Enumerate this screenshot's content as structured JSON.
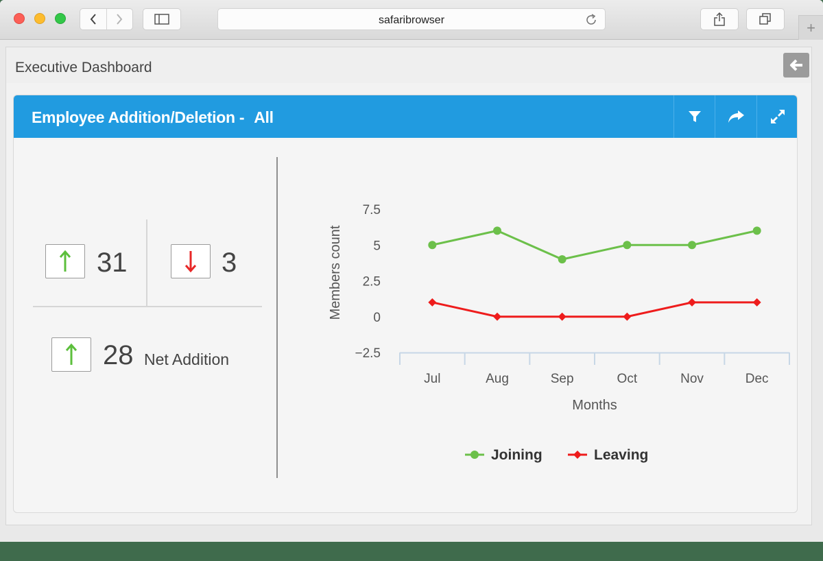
{
  "browser": {
    "url": "safaribrowser"
  },
  "page": {
    "title": "Executive Dashboard"
  },
  "widget": {
    "title": "Employee Addition/Deletion -",
    "filter_value": "All"
  },
  "stats": {
    "joined": "31",
    "left": "3",
    "net": "28",
    "net_label": "Net Addition"
  },
  "colors": {
    "header_blue": "#219be0",
    "joining": "#6cc04a",
    "leaving": "#ee1c1c"
  },
  "icons": [
    "back-icon",
    "sidebar-icon",
    "reload-icon",
    "share-icon",
    "tabs-icon",
    "filter-icon",
    "forward-icon",
    "expand-icon",
    "arrow-up-icon",
    "arrow-down-icon"
  ],
  "chart_data": {
    "type": "line",
    "categories": [
      "Jul",
      "Aug",
      "Sep",
      "Oct",
      "Nov",
      "Dec"
    ],
    "series": [
      {
        "name": "Joining",
        "values": [
          5,
          6,
          4,
          5,
          5,
          6
        ],
        "color": "#6cc04a",
        "marker": "circle"
      },
      {
        "name": "Leaving",
        "values": [
          1,
          0,
          0,
          0,
          1,
          1
        ],
        "color": "#ee1c1c",
        "marker": "diamond"
      }
    ],
    "xlabel": "Months",
    "ylabel": "Members count",
    "ylim": [
      -2.5,
      7.5
    ],
    "yticks": [
      "7.5",
      "5",
      "2.5",
      "0",
      "−2.5"
    ],
    "grid": false,
    "legend": "bottom-center"
  }
}
